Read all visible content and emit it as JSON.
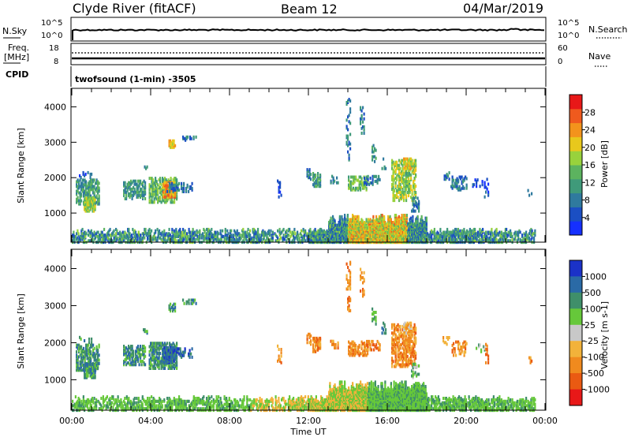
{
  "header": {
    "station": "Clyde River (fitACF)",
    "beam": "Beam 12",
    "date": "04/Mar/2019"
  },
  "top_panels": {
    "nsky_label": "N.Sky",
    "nsearch_label": "N.Search",
    "left_ticks": [
      "10^5",
      "10^0"
    ],
    "right_ticks": [
      "10^5",
      "10^0"
    ],
    "freq_label_1": "Freq.",
    "freq_label_2": "[MHz]",
    "freq_ticks": [
      "18",
      "8"
    ],
    "nave_label": "Nave",
    "nave_ticks": [
      "60",
      "0"
    ],
    "cpid_label": "CPID",
    "cpid_text": "twofsound (1-min) -3505"
  },
  "chart_data": [
    {
      "type": "heatmap",
      "name": "power",
      "ylabel": "Slant Range [km]",
      "xlabel": "",
      "y_ticks": [
        "1000",
        "2000",
        "3000",
        "4000"
      ],
      "ylim": [
        200,
        4500
      ],
      "colorbar": {
        "label": "Power [dB]",
        "ticks": [
          "4",
          "8",
          "12",
          "16",
          "20",
          "24",
          "28"
        ],
        "range": [
          0,
          32
        ],
        "colors": [
          "#1530ff",
          "#1b4fc3",
          "#2f7a9e",
          "#3f9a7a",
          "#5cb35f",
          "#98d23c",
          "#e8c81c",
          "#f3931c",
          "#ef5a1e",
          "#e81818"
        ]
      }
    },
    {
      "type": "heatmap",
      "name": "velocity",
      "ylabel": "Slant Range [km]",
      "xlabel": "Time UT",
      "x_ticks": [
        "00:00",
        "04:00",
        "08:00",
        "12:00",
        "16:00",
        "20:00",
        "00:00"
      ],
      "y_ticks": [
        "1000",
        "2000",
        "3000",
        "4000"
      ],
      "ylim": [
        200,
        4500
      ],
      "colorbar": {
        "label": "Velocity [m s-1]",
        "ticks": [
          "1000",
          "500",
          "100",
          "25",
          "-25",
          "-100",
          "-500",
          "-1000"
        ],
        "colors": [
          "#1b32c8",
          "#2a6aa6",
          "#3f8f6a",
          "#66c83a",
          "#c8c8c8",
          "#f2b23a",
          "#f08a1e",
          "#ea5a12",
          "#e81818"
        ]
      }
    }
  ]
}
